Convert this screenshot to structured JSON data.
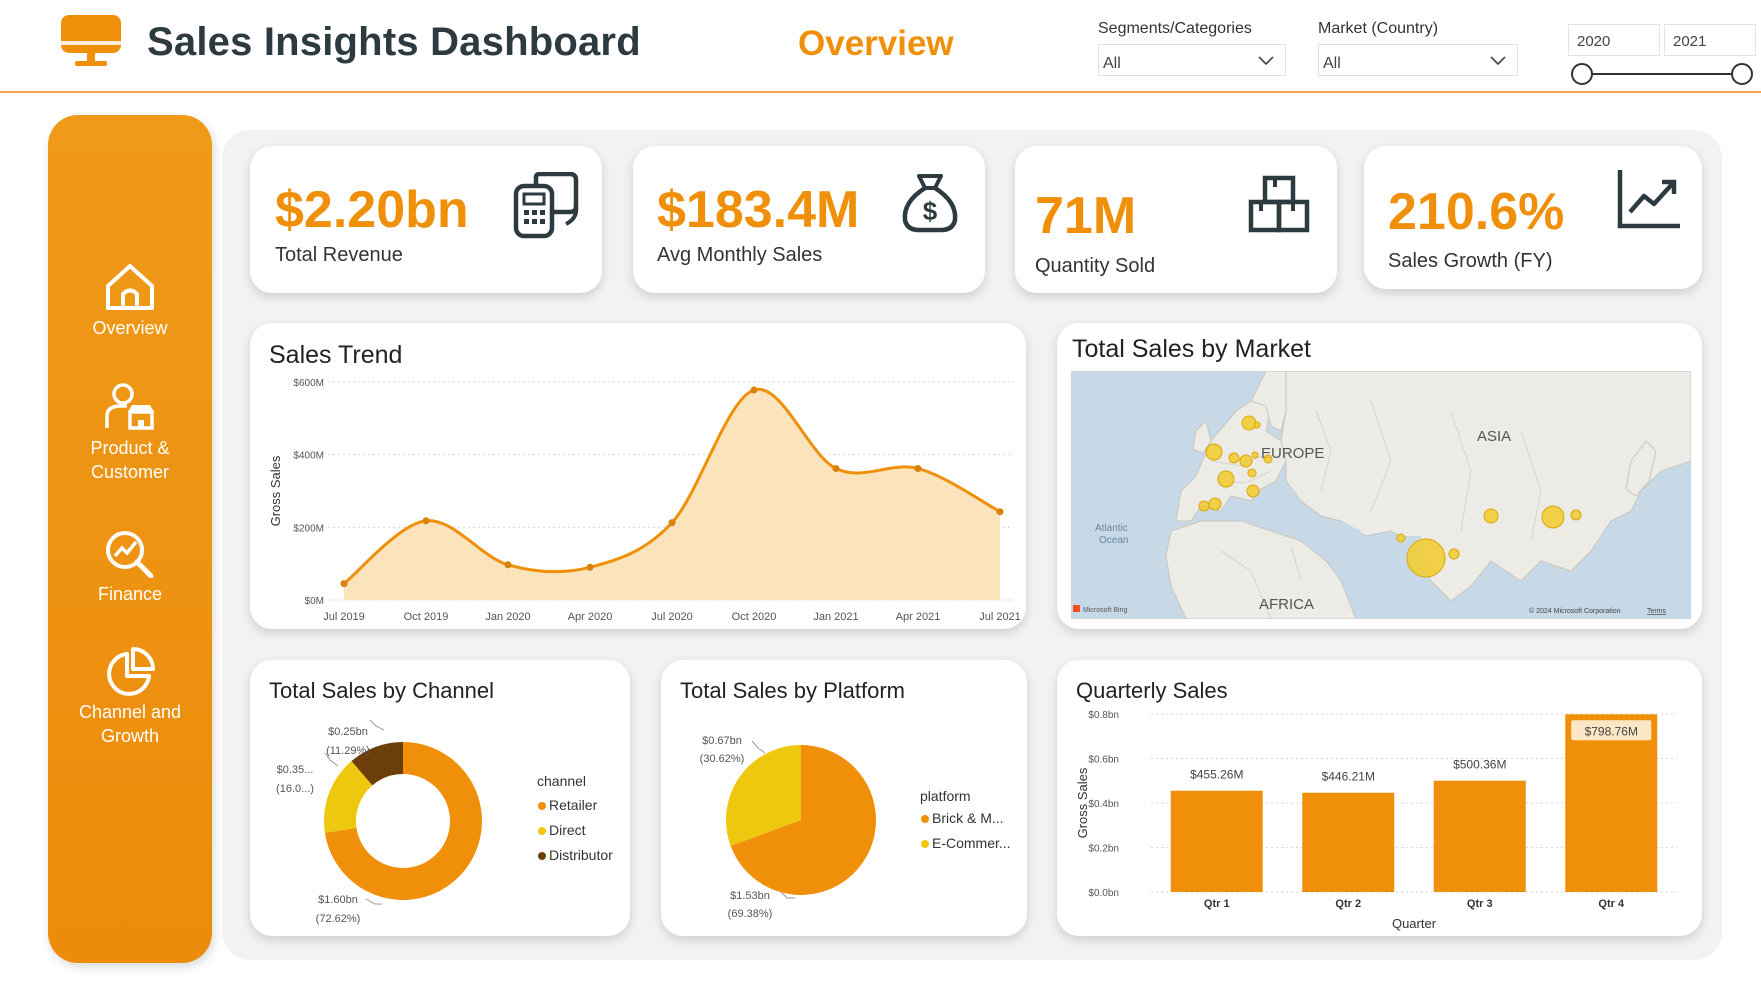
{
  "header": {
    "title": "Sales Insights Dashboard",
    "page_name": "Overview",
    "filters": [
      {
        "label": "Segments/Categories",
        "value": "All"
      },
      {
        "label": "Market (Country)",
        "value": "All"
      }
    ],
    "date_range": {
      "start": "2020",
      "end": "2021"
    }
  },
  "sidebar": {
    "items": [
      {
        "label_lines": [
          "Overview"
        ],
        "icon": "home-icon"
      },
      {
        "label_lines": [
          "Product &",
          "Customer"
        ],
        "icon": "user-store-icon"
      },
      {
        "label_lines": [
          "Finance"
        ],
        "icon": "finance-search-icon"
      },
      {
        "label_lines": [
          "Channel and",
          "Growth"
        ],
        "icon": "pie-chart-icon"
      }
    ]
  },
  "kpis": [
    {
      "value": "$2.20bn",
      "label": "Total Revenue",
      "icon": "pos-terminal-icon"
    },
    {
      "value": "$183.4M",
      "label": "Avg Monthly Sales",
      "icon": "money-bag-icon"
    },
    {
      "value": "71M",
      "label": "Quantity Sold",
      "icon": "boxes-icon"
    },
    {
      "value": "210.6%",
      "label": "Sales Growth (FY)",
      "icon": "growth-chart-icon"
    }
  ],
  "colors": {
    "accent": "#F0900A",
    "dark": "#2D3A40",
    "area_fill": "#FBE3BC",
    "yellow": "#EEC80E",
    "brown": "#6B3E0A"
  },
  "sales_trend": {
    "title": "Sales Trend",
    "chart_data": {
      "type": "area",
      "title": "Sales Trend",
      "ylabel": "Gross Sales",
      "ylim": [
        0,
        600
      ],
      "y_ticks": [
        "$0M",
        "$200M",
        "$400M",
        "$600M"
      ],
      "x_ticks": [
        "Jul 2019",
        "Oct 2019",
        "Jan 2020",
        "Apr 2020",
        "Jul 2020",
        "Oct 2020",
        "Jan 2021",
        "Apr 2021",
        "Jul 2021"
      ],
      "x_points": [
        0,
        1,
        2,
        3,
        4,
        5,
        6,
        7,
        8
      ],
      "values": [
        45,
        218,
        97,
        90,
        213,
        578,
        362,
        362,
        243
      ]
    }
  },
  "map": {
    "title": "Total Sales by Market",
    "labels": [
      "EUROPE",
      "ASIA",
      "AFRICA",
      "Atlantic",
      "Ocean"
    ],
    "attribution": "Microsoft Bing",
    "copyright": "© 2024 Microsoft Corporation",
    "terms": "Terms"
  },
  "channel": {
    "title": "Total Sales by Channel",
    "legend_title": "channel",
    "chart_data": {
      "type": "pie",
      "title": "Total Sales by Channel",
      "categories": [
        "Retailer",
        "Direct",
        "Distributor"
      ],
      "values": [
        72.62,
        16.09,
        11.29
      ],
      "data_labels": [
        {
          "value": "$1.60bn",
          "pct": "(72.62%)"
        },
        {
          "value": "$0.35...",
          "pct": "(16.0...)"
        },
        {
          "value": "$0.25bn",
          "pct": "(11.29%)"
        }
      ]
    }
  },
  "platform": {
    "title": "Total Sales by Platform",
    "legend_title": "platform",
    "chart_data": {
      "type": "pie",
      "title": "Total Sales by Platform",
      "categories": [
        "Brick & M...",
        "E-Commer..."
      ],
      "values": [
        69.38,
        30.62
      ],
      "data_labels": [
        {
          "value": "$1.53bn",
          "pct": "(69.38%)"
        },
        {
          "value": "$0.67bn",
          "pct": "(30.62%)"
        }
      ]
    }
  },
  "quarterly": {
    "title": "Quarterly Sales",
    "chart_data": {
      "type": "bar",
      "title": "Quarterly Sales",
      "categories": [
        "Qtr 1",
        "Qtr 2",
        "Qtr 3",
        "Qtr 4"
      ],
      "values": [
        455.26,
        446.21,
        500.36,
        798.76
      ],
      "data_labels": [
        "$455.26M",
        "$446.21M",
        "$500.36M",
        "$798.76M"
      ],
      "xlabel": "Quarter",
      "ylabel": "Gross Sales",
      "ylim": [
        0,
        800
      ],
      "y_ticks": [
        "$0.0bn",
        "$0.2bn",
        "$0.4bn",
        "$0.6bn",
        "$0.8bn"
      ]
    }
  }
}
